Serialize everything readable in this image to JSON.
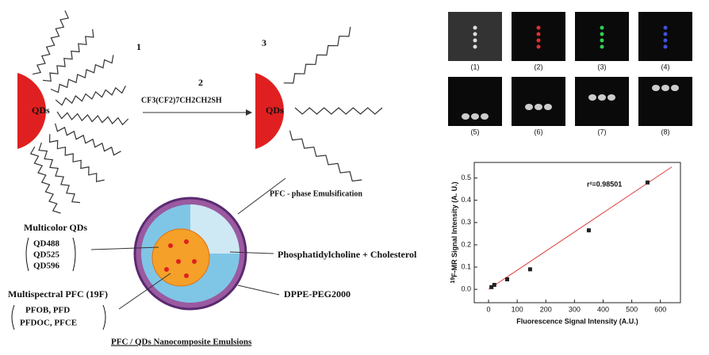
{
  "diagram": {
    "step1": "1",
    "step2": "2",
    "step3": "3",
    "reagent": "CF3(CF2)7CH2CH2SH",
    "qd_left": "QDs",
    "qd_right": "QDs",
    "emulsification": "PFC - phase Emulsification",
    "multicolor_title": "Multicolor QDs",
    "multicolor_items": [
      "QD488",
      "QD525",
      "QD596"
    ],
    "pfc_title": "Multispectral PFC (19F)",
    "pfc_items": [
      "PFOB, PFD",
      "PFDOC, PFCE"
    ],
    "lipid": "Phosphatidylcholine + Cholesterol",
    "peg": "DPPE-PEG2000",
    "caption": "PFC / QDs Nanocomposite Emulsions"
  },
  "panels": {
    "labels": [
      "(1)",
      "(2)",
      "(3)",
      "(4)",
      "(5)",
      "(6)",
      "(7)",
      "(8)"
    ]
  },
  "chart_data": {
    "type": "scatter",
    "ylabel_sup": "19",
    "ylabel": "F-MR Signal Intensity (A. U.)",
    "xlabel": "Fluorescence Signal Intensity (A.U.)",
    "annotation": "r²=0.98501",
    "x": [
      10,
      20,
      65,
      145,
      350,
      555
    ],
    "values": [
      0.01,
      0.02,
      0.045,
      0.09,
      0.265,
      0.48
    ],
    "color": "#222222",
    "xlim": [
      -50,
      670
    ],
    "ylim": [
      -0.06,
      0.57
    ],
    "xticks": [
      0,
      100,
      200,
      300,
      400,
      500,
      600
    ],
    "yticks": [
      {
        "value": 0,
        "label": "0.0"
      },
      0.1,
      0.2,
      0.3,
      0.4,
      0.5
    ],
    "trendline": {
      "x": [
        0,
        640
      ],
      "y": [
        0,
        0.55
      ],
      "color": "#e04040"
    }
  }
}
